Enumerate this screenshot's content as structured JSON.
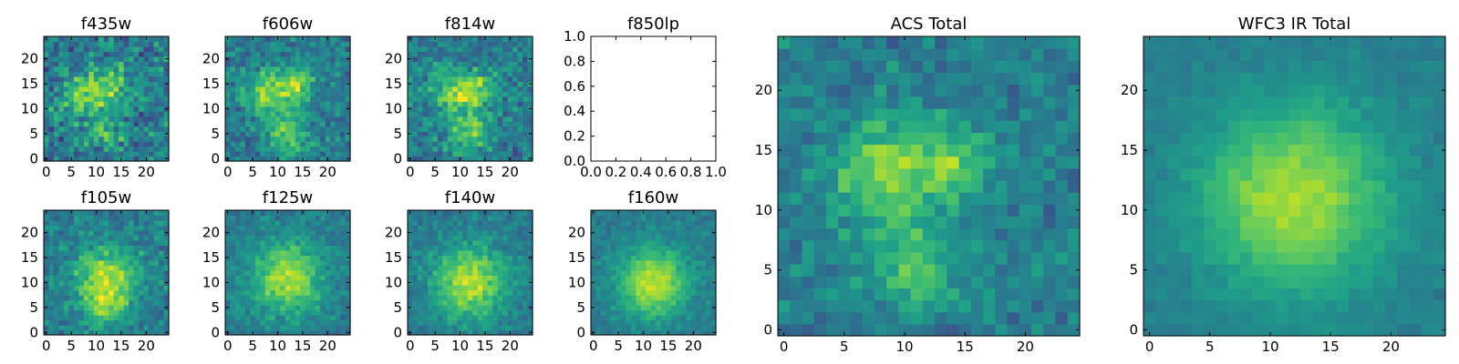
{
  "chart_data": [
    {
      "type": "heatmap",
      "title": "f435w",
      "peak": 0.62,
      "noise": 0.55,
      "seed": 11,
      "centers": [
        [
          8,
          13,
          3.2,
          1.0
        ],
        [
          13,
          15,
          2.5,
          0.7
        ],
        [
          12,
          5,
          2.5,
          0.6
        ]
      ],
      "xticks": [
        0,
        5,
        10,
        15,
        20
      ],
      "yticks": [
        0,
        5,
        10,
        15,
        20
      ],
      "xlim": [
        -0.5,
        24.5
      ],
      "ylim": [
        -0.5,
        24.5
      ]
    },
    {
      "type": "heatmap",
      "title": "f606w",
      "peak": 0.72,
      "noise": 0.4,
      "seed": 23,
      "centers": [
        [
          8,
          13,
          3.0,
          1.0
        ],
        [
          14,
          15,
          2.5,
          0.8
        ],
        [
          12,
          5,
          2.8,
          0.85
        ]
      ],
      "xticks": [
        0,
        5,
        10,
        15,
        20
      ],
      "yticks": [
        0,
        5,
        10,
        15,
        20
      ],
      "xlim": [
        -0.5,
        24.5
      ],
      "ylim": [
        -0.5,
        24.5
      ]
    },
    {
      "type": "heatmap",
      "title": "f814w",
      "peak": 0.7,
      "noise": 0.45,
      "seed": 37,
      "centers": [
        [
          9,
          13,
          3.2,
          1.0
        ],
        [
          14,
          14,
          2.5,
          0.7
        ],
        [
          12,
          5,
          2.8,
          0.75
        ]
      ],
      "xticks": [
        0,
        5,
        10,
        15,
        20
      ],
      "yticks": [
        0,
        5,
        10,
        15,
        20
      ],
      "xlim": [
        -0.5,
        24.5
      ],
      "ylim": [
        -0.5,
        24.5
      ]
    },
    {
      "type": "empty",
      "title": "f850lp",
      "xticks": [
        "0.0",
        "0.2",
        "0.4",
        "0.6",
        "0.8",
        "1.0"
      ],
      "yticks": [
        "0.0",
        "0.2",
        "0.4",
        "0.6",
        "0.8",
        "1.0"
      ],
      "xlim": [
        0,
        1
      ],
      "ylim": [
        0,
        1
      ]
    },
    {
      "type": "heatmap",
      "title": "f105w",
      "peak": 0.72,
      "noise": 0.35,
      "seed": 41,
      "centers": [
        [
          12,
          11,
          4.5,
          1.0
        ],
        [
          12,
          5,
          3.0,
          0.6
        ]
      ],
      "xticks": [
        0,
        5,
        10,
        15,
        20
      ],
      "yticks": [
        0,
        5,
        10,
        15,
        20
      ],
      "xlim": [
        -0.5,
        24.5
      ],
      "ylim": [
        -0.5,
        24.5
      ]
    },
    {
      "type": "heatmap",
      "title": "f125w",
      "peak": 0.78,
      "noise": 0.28,
      "seed": 53,
      "centers": [
        [
          12,
          11,
          5.0,
          1.0
        ]
      ],
      "xticks": [
        0,
        5,
        10,
        15,
        20
      ],
      "yticks": [
        0,
        5,
        10,
        15,
        20
      ],
      "xlim": [
        -0.5,
        24.5
      ],
      "ylim": [
        -0.5,
        24.5
      ]
    },
    {
      "type": "heatmap",
      "title": "f140w",
      "peak": 0.82,
      "noise": 0.25,
      "seed": 67,
      "centers": [
        [
          12,
          10,
          5.0,
          1.0
        ]
      ],
      "xticks": [
        0,
        5,
        10,
        15,
        20
      ],
      "yticks": [
        0,
        5,
        10,
        15,
        20
      ],
      "xlim": [
        -0.5,
        24.5
      ],
      "ylim": [
        -0.5,
        24.5
      ]
    },
    {
      "type": "heatmap",
      "title": "f160w",
      "peak": 0.85,
      "noise": 0.2,
      "seed": 79,
      "centers": [
        [
          12,
          10,
          4.8,
          1.0
        ]
      ],
      "xticks": [
        0,
        5,
        10,
        15,
        20
      ],
      "yticks": [
        0,
        5,
        10,
        15,
        20
      ],
      "xlim": [
        -0.5,
        24.5
      ],
      "ylim": [
        -0.5,
        24.5
      ]
    },
    {
      "type": "heatmap",
      "title": "ACS Total",
      "peak": 0.68,
      "noise": 0.32,
      "seed": 97,
      "centers": [
        [
          8,
          13,
          3.0,
          1.0
        ],
        [
          14,
          14,
          2.4,
          0.75
        ],
        [
          11,
          5,
          2.6,
          0.75
        ]
      ],
      "xticks": [
        0,
        5,
        10,
        15,
        20
      ],
      "yticks": [
        0,
        5,
        10,
        15,
        20
      ],
      "xlim": [
        -0.5,
        24.5
      ],
      "ylim": [
        -0.5,
        24.5
      ]
    },
    {
      "type": "heatmap",
      "title": "WFC3 IR Total",
      "peak": 0.78,
      "noise": 0.12,
      "seed": 103,
      "centers": [
        [
          12,
          11,
          5.5,
          1.0
        ]
      ],
      "xticks": [
        0,
        5,
        10,
        15,
        20
      ],
      "yticks": [
        0,
        5,
        10,
        15,
        20
      ],
      "xlim": [
        -0.5,
        24.5
      ],
      "ylim": [
        -0.5,
        24.5
      ]
    }
  ]
}
